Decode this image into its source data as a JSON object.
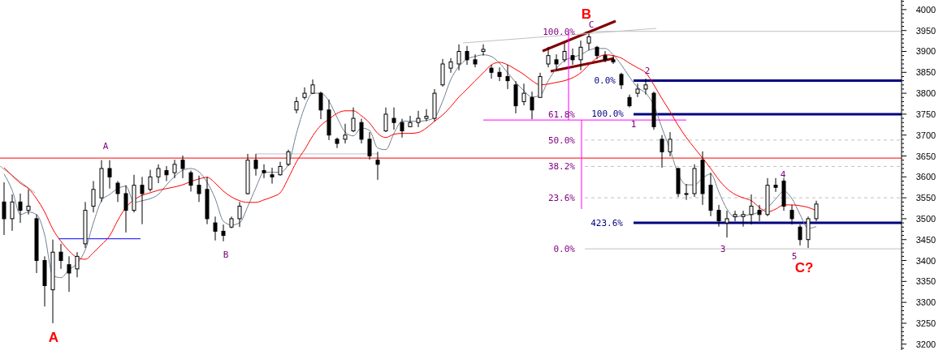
{
  "chart_data": {
    "type": "candlestick",
    "categories": [
      null,
      null,
      null,
      null,
      null,
      null,
      null,
      null,
      null,
      null,
      null,
      null,
      null,
      null,
      null,
      null,
      null,
      null,
      null,
      null,
      null,
      null,
      null,
      null,
      null,
      null,
      null,
      null,
      null,
      null,
      null,
      null,
      null,
      null,
      null,
      null,
      null,
      null,
      null,
      null,
      null,
      null,
      null,
      null,
      null,
      null,
      null,
      null,
      null,
      null,
      null,
      null,
      null,
      null,
      null,
      null,
      null,
      null,
      null,
      null,
      null,
      null,
      null,
      null,
      null,
      null,
      null,
      null,
      null,
      null,
      null,
      null,
      null,
      null,
      null,
      null,
      null,
      null,
      null,
      null,
      null,
      null,
      null,
      null,
      null,
      null,
      null,
      null,
      null,
      null,
      null,
      null,
      null,
      null,
      null,
      null,
      null,
      null,
      null,
      null,
      null,
      null,
      null,
      null,
      null,
      null,
      null,
      null,
      null,
      null,
      null
    ],
    "ylim": [
      3186,
      4023
    ],
    "yticks": [
      {
        "value": 3190,
        "label": null
      },
      3200,
      {
        "value": 3210,
        "label": null
      },
      {
        "value": 3220,
        "label": null
      },
      {
        "value": 3230,
        "label": null
      },
      {
        "value": 3240,
        "label": null
      },
      3250,
      {
        "value": 3260,
        "label": null
      },
      {
        "value": 3270,
        "label": null
      },
      {
        "value": 3280,
        "label": null
      },
      {
        "value": 3290,
        "label": null
      },
      3300,
      {
        "value": 3310,
        "label": null
      },
      {
        "value": 3320,
        "label": null
      },
      {
        "value": 3330,
        "label": null
      },
      {
        "value": 3340,
        "label": null
      },
      3350,
      {
        "value": 3360,
        "label": null
      },
      {
        "value": 3370,
        "label": null
      },
      {
        "value": 3380,
        "label": null
      },
      {
        "value": 3390,
        "label": null
      },
      3400,
      {
        "value": 3410,
        "label": null
      },
      {
        "value": 3420,
        "label": null
      },
      {
        "value": 3430,
        "label": null
      },
      {
        "value": 3440,
        "label": null
      },
      3450,
      {
        "value": 3460,
        "label": null
      },
      {
        "value": 3470,
        "label": null
      },
      {
        "value": 3480,
        "label": null
      },
      {
        "value": 3490,
        "label": null
      },
      3500,
      {
        "value": 3510,
        "label": null
      },
      {
        "value": 3520,
        "label": null
      },
      {
        "value": 3530,
        "label": null
      },
      {
        "value": 3540,
        "label": null
      },
      3550,
      {
        "value": 3560,
        "label": null
      },
      {
        "value": 3570,
        "label": null
      },
      {
        "value": 3580,
        "label": null
      },
      {
        "value": 3590,
        "label": null
      },
      3600,
      {
        "value": 3610,
        "label": null
      },
      {
        "value": 3620,
        "label": null
      },
      {
        "value": 3630,
        "label": null
      },
      {
        "value": 3640,
        "label": null
      },
      3650,
      {
        "value": 3660,
        "label": null
      },
      {
        "value": 3670,
        "label": null
      },
      {
        "value": 3680,
        "label": null
      },
      {
        "value": 3690,
        "label": null
      },
      3700,
      {
        "value": 3710,
        "label": null
      },
      {
        "value": 3720,
        "label": null
      },
      {
        "value": 3730,
        "label": null
      },
      {
        "value": 3740,
        "label": null
      },
      3750,
      {
        "value": 3760,
        "label": null
      },
      {
        "value": 3770,
        "label": null
      },
      {
        "value": 3780,
        "label": null
      },
      {
        "value": 3790,
        "label": null
      },
      3800,
      {
        "value": 3810,
        "label": null
      },
      {
        "value": 3820,
        "label": null
      },
      {
        "value": 3830,
        "label": null
      },
      {
        "value": 3840,
        "label": null
      },
      3850,
      {
        "value": 3860,
        "label": null
      },
      {
        "value": 3870,
        "label": null
      },
      {
        "value": 3880,
        "label": null
      },
      {
        "value": 3890,
        "label": null
      },
      3900,
      {
        "value": 3910,
        "label": null
      },
      {
        "value": 3920,
        "label": null
      },
      {
        "value": 3930,
        "label": null
      },
      {
        "value": 3940,
        "label": null
      },
      3950,
      {
        "value": 3960,
        "label": null
      },
      {
        "value": 3970,
        "label": null
      },
      {
        "value": 3980,
        "label": null
      },
      {
        "value": 3990,
        "label": null
      },
      4000,
      {
        "value": 4010,
        "label": null
      },
      {
        "value": 4020,
        "label": null
      }
    ],
    "tick_labels": "y",
    "series": [
      {
        "type": "line",
        "color": "#708090",
        "values": [
          3607,
          3568,
          3510,
          3516,
          3510,
          3461,
          3364,
          3359,
          3378,
          3393,
          3426,
          3490,
          3543,
          3558,
          3572,
          3578,
          3539,
          3543,
          3548,
          3558,
          3581,
          3601,
          3616,
          3620,
          3612,
          3587,
          3548,
          3494,
          3485,
          3490,
          3529,
          3574,
          3611,
          3611,
          3611,
          3630,
          3704,
          3766,
          3800,
          3800,
          3781,
          3742,
          3707,
          3698,
          3717,
          3711,
          3669,
          3665,
          3704,
          3733,
          3733,
          3733,
          3735,
          3742,
          3781,
          3833,
          3864,
          3882,
          3888,
          3892,
          3888,
          3872,
          3849,
          3826,
          3806,
          3791,
          3795,
          3830,
          3859,
          3878,
          3886,
          3892,
          3903,
          3907,
          3907,
          3892,
          3868,
          3839,
          3814,
          3800,
          3771,
          3717,
          3665,
          3607,
          3581,
          3581,
          3597,
          3607,
          3564,
          3523,
          3504,
          3508,
          3510,
          3516,
          3527,
          3547,
          3566,
          3548,
          3510,
          3477,
          3481,
          null,
          null,
          null,
          null,
          null,
          null,
          null,
          null,
          null,
          null
        ]
      },
      {
        "type": "line",
        "color": "#ff0000",
        "values": [
          3622,
          3603,
          3585,
          3572,
          3548,
          3516,
          3475,
          3446,
          3423,
          3407,
          3403,
          3419,
          3438,
          3459,
          3496,
          3527,
          3545,
          3556,
          3562,
          3568,
          3572,
          3576,
          3581,
          3589,
          3595,
          3599,
          3585,
          3566,
          3552,
          3543,
          3539,
          3539,
          3545,
          3552,
          3562,
          3597,
          3636,
          3665,
          3698,
          3723,
          3738,
          3752,
          3758,
          3758,
          3746,
          3729,
          3704,
          3694,
          3702,
          3704,
          3704,
          3706,
          3717,
          3733,
          3748,
          3768,
          3791,
          3810,
          3830,
          3849,
          3868,
          3874,
          3868,
          3857,
          3845,
          3830,
          3820,
          3822,
          3826,
          3830,
          3837,
          3849,
          3868,
          3884,
          3892,
          3890,
          3884,
          3872,
          3861,
          3849,
          3820,
          3787,
          3756,
          3723,
          3694,
          3669,
          3645,
          3620,
          3593,
          3572,
          3558,
          3550,
          3543,
          3527,
          3516,
          3523,
          3533,
          3533,
          3531,
          3527,
          3519,
          null,
          null,
          null,
          null,
          null,
          null,
          null,
          null,
          null,
          null
        ]
      },
      {
        "type": "candlestick",
        "color": "#000000",
        "ohlc": [
          [
            3540,
            3587,
            3461,
            3500
          ],
          [
            3500,
            3558,
            3471,
            3540
          ],
          [
            3540,
            3560,
            3490,
            3520
          ],
          [
            3520,
            3570,
            3510,
            3530
          ],
          [
            3500,
            3510,
            3370,
            3400
          ],
          [
            3400,
            3410,
            3290,
            3340
          ],
          [
            3330,
            3450,
            3250,
            3420
          ],
          [
            3420,
            3440,
            3380,
            3400
          ],
          [
            3390,
            3410,
            3325,
            3370
          ],
          [
            3380,
            3420,
            3360,
            3410
          ],
          [
            3440,
            3540,
            3430,
            3520
          ],
          [
            3530,
            3590,
            3515,
            3570
          ],
          [
            3550,
            3640,
            3540,
            3620
          ],
          [
            3620,
            3640,
            3572,
            3600
          ],
          [
            3585,
            3590,
            3540,
            3560
          ],
          [
            3560,
            3580,
            3467,
            3520
          ],
          [
            3520,
            3605,
            3515,
            3580
          ],
          [
            3580,
            3600,
            3487,
            3560
          ],
          [
            3570,
            3617,
            3565,
            3600
          ],
          [
            3600,
            3630,
            3585,
            3620
          ],
          [
            3615,
            3626,
            3590,
            3605
          ],
          [
            3610,
            3641,
            3597,
            3630
          ],
          [
            3640,
            3651,
            3597,
            3620
          ],
          [
            3610,
            3615,
            3565,
            3580
          ],
          [
            3580,
            3603,
            3540,
            3560
          ],
          [
            3570,
            3600,
            3487,
            3500
          ],
          [
            3490,
            3505,
            3448,
            3470
          ],
          [
            3470,
            3486,
            3446,
            3460
          ],
          [
            3480,
            3505,
            3477,
            3500
          ],
          [
            3500,
            3540,
            3480,
            3530
          ],
          [
            3560,
            3655,
            3558,
            3640
          ],
          [
            3640,
            3655,
            3603,
            3620
          ],
          [
            3615,
            3630,
            3597,
            3610
          ],
          [
            3605,
            3622,
            3584,
            3600
          ],
          [
            3605,
            3636,
            3603,
            3625
          ],
          [
            3630,
            3665,
            3626,
            3660
          ],
          [
            3760,
            3791,
            3752,
            3780
          ],
          [
            3790,
            3814,
            3785,
            3800
          ],
          [
            3800,
            3833,
            3798,
            3820
          ],
          [
            3800,
            3804,
            3738,
            3760
          ],
          [
            3760,
            3785,
            3688,
            3700
          ],
          [
            3690,
            3694,
            3669,
            3680
          ],
          [
            3690,
            3727,
            3680,
            3700
          ],
          [
            3710,
            3766,
            3707,
            3740
          ],
          [
            3730,
            3739,
            3680,
            3690
          ],
          [
            3690,
            3707,
            3641,
            3650
          ],
          [
            3640,
            3660,
            3593,
            3630
          ],
          [
            3710,
            3766,
            3707,
            3750
          ],
          [
            3740,
            3766,
            3713,
            3730
          ],
          [
            3730,
            3739,
            3694,
            3710
          ],
          [
            3720,
            3746,
            3719,
            3730
          ],
          [
            3730,
            3758,
            3719,
            3740
          ],
          [
            3740,
            3762,
            3733,
            3745
          ],
          [
            3740,
            3810,
            3733,
            3800
          ],
          [
            3820,
            3882,
            3816,
            3870
          ],
          [
            3860,
            3884,
            3849,
            3875
          ],
          [
            3870,
            3917,
            3855,
            3900
          ],
          [
            3900,
            3913,
            3868,
            3880
          ],
          [
            3880,
            3893,
            3862,
            3870
          ],
          [
            3900,
            3917,
            3890,
            3905
          ],
          [
            3860,
            3868,
            3835,
            3850
          ],
          [
            3850,
            3862,
            3829,
            3840
          ],
          [
            3840,
            3868,
            3810,
            3830
          ],
          [
            3820,
            3829,
            3752,
            3770
          ],
          [
            3780,
            3823,
            3771,
            3800
          ],
          [
            3790,
            3804,
            3738,
            3760
          ],
          [
            3790,
            3849,
            3790,
            3840
          ],
          [
            3870,
            3911,
            3862,
            3890
          ],
          [
            3880,
            3893,
            3855,
            3870
          ],
          [
            3880,
            3920,
            3874,
            3900
          ],
          [
            3890,
            3907,
            3868,
            3880
          ],
          [
            3880,
            3926,
            3855,
            3910
          ],
          [
            3920,
            3942,
            3903,
            3935
          ],
          [
            3910,
            3913,
            3882,
            3890
          ],
          [
            3890,
            3901,
            3874,
            3880
          ],
          [
            3880,
            3890,
            3870,
            3875
          ],
          [
            3845,
            3849,
            3810,
            3820
          ],
          [
            3790,
            3797,
            3766,
            3770
          ],
          [
            3800,
            3823,
            3791,
            3810
          ],
          [
            3810,
            3835,
            3797,
            3820
          ],
          [
            3800,
            3804,
            3713,
            3720
          ],
          [
            3690,
            3700,
            3622,
            3660
          ],
          [
            3660,
            3707,
            3649,
            3690
          ],
          [
            3620,
            3622,
            3552,
            3560
          ],
          [
            3560,
            3583,
            3545,
            3560
          ],
          [
            3560,
            3630,
            3552,
            3620
          ],
          [
            3640,
            3661,
            3533,
            3560
          ],
          [
            3580,
            3610,
            3506,
            3520
          ],
          [
            3520,
            3533,
            3481,
            3495
          ],
          [
            3490,
            3519,
            3455,
            3500
          ],
          [
            3505,
            3519,
            3494,
            3510
          ],
          [
            3505,
            3519,
            3481,
            3510
          ],
          [
            3510,
            3558,
            3486,
            3530
          ],
          [
            3520,
            3533,
            3494,
            3510
          ],
          [
            3510,
            3597,
            3506,
            3580
          ],
          [
            3580,
            3597,
            3564,
            3575
          ],
          [
            3590,
            3597,
            3519,
            3530
          ],
          [
            3520,
            3533,
            3486,
            3500
          ],
          [
            3480,
            3486,
            3436,
            3450
          ],
          [
            3450,
            3505,
            3430,
            3500
          ],
          [
            3500,
            3543,
            3494,
            3535
          ],
          null,
          null,
          null,
          null,
          null,
          null,
          null,
          null,
          null,
          null
        ]
      }
    ],
    "ref_lines": [
      {
        "axis": "y",
        "value": 3645,
        "color": "#ff0000"
      },
      {
        "axis": "y",
        "value": 3948,
        "color": "#c0c0c0"
      },
      {
        "axis": "y",
        "value": 3736,
        "color": "#ff00ff"
      },
      {
        "axis": "y",
        "value": 3688,
        "color": "#c0c0c0",
        "line_style": "dashed"
      },
      {
        "axis": "y",
        "value": 3625,
        "color": "#c0c0c0",
        "line_style": "dashed"
      },
      {
        "axis": "y",
        "value": 3550,
        "color": "#c0c0c0",
        "line_style": "dashed"
      },
      {
        "axis": "y",
        "value": 3428,
        "color": "#c0c0c0"
      },
      {
        "axis": "y",
        "value": 3830,
        "color": "#000080"
      },
      {
        "axis": "y",
        "value": 3750,
        "color": "#000080"
      },
      {
        "axis": "y",
        "value": 3490,
        "color": "#000080"
      },
      {
        "axis": "y",
        "value": 3655,
        "color": "#c0c0c0"
      },
      {
        "axis": "y",
        "value": 3452,
        "color": "#0000ff"
      }
    ],
    "annotations": [
      "A",
      "A",
      "B",
      "B",
      "C",
      "1",
      "2",
      "3",
      "4",
      "5",
      "C?",
      "100.0%",
      "61.8%",
      "50.0%",
      "38.2%",
      "23.6%",
      "0.0%",
      "0.0%",
      "100.0%",
      "423.6%"
    ]
  }
}
